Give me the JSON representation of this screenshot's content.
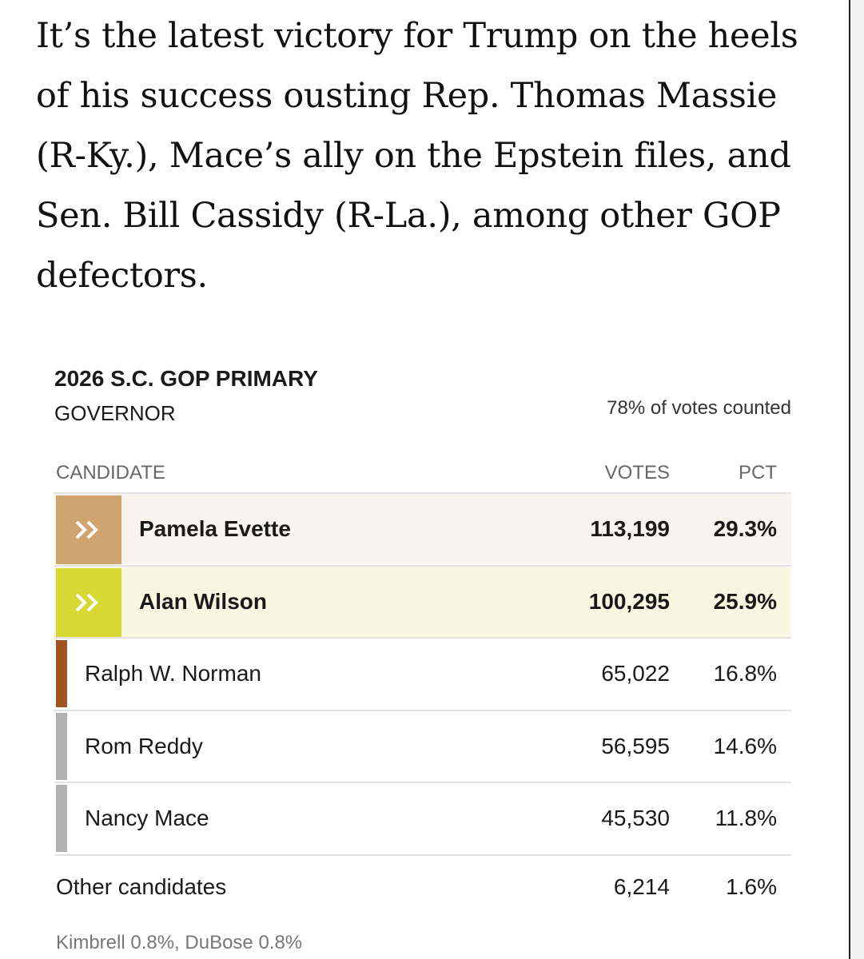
{
  "article": {
    "paragraph": "It’s the latest victory for Trump on the heels of his success ousting Rep. Thomas Massie (R-Ky.), Mace’s ally on the Epstein files, and Sen. Bill Cassidy (R-La.), among other GOP defectors."
  },
  "results": {
    "title": "2026 S.C. GOP PRIMARY",
    "subtitle": "GOVERNOR",
    "counted": "78% of votes counted",
    "columns": [
      "CANDIDATE",
      "VOTES",
      "PCT"
    ],
    "rows": [
      {
        "name": "Pamela Evette",
        "votes": "113,199",
        "pct": "29.3%",
        "color": "#cfa46e",
        "background": "#f7f3ee"
      },
      {
        "name": "Alan Wilson",
        "votes": "100,295",
        "pct": "25.9%",
        "color": "#d8d835",
        "background": "#f8f7e1"
      },
      {
        "name": "Ralph W. Norman",
        "votes": "65,022",
        "pct": "16.8%",
        "color": "#a0541f"
      },
      {
        "name": "Rom Reddy",
        "votes": "56,595",
        "pct": "14.6%",
        "color": "#b2b2b2"
      },
      {
        "name": "Nancy Mace",
        "votes": "45,530",
        "pct": "11.8%",
        "color": "#b2b2b2"
      }
    ],
    "other": {
      "name": "Other candidates",
      "votes": "6,214",
      "pct": "1.6%"
    },
    "footnote": "Kimbrell 0.8%, DuBose 0.8%"
  }
}
